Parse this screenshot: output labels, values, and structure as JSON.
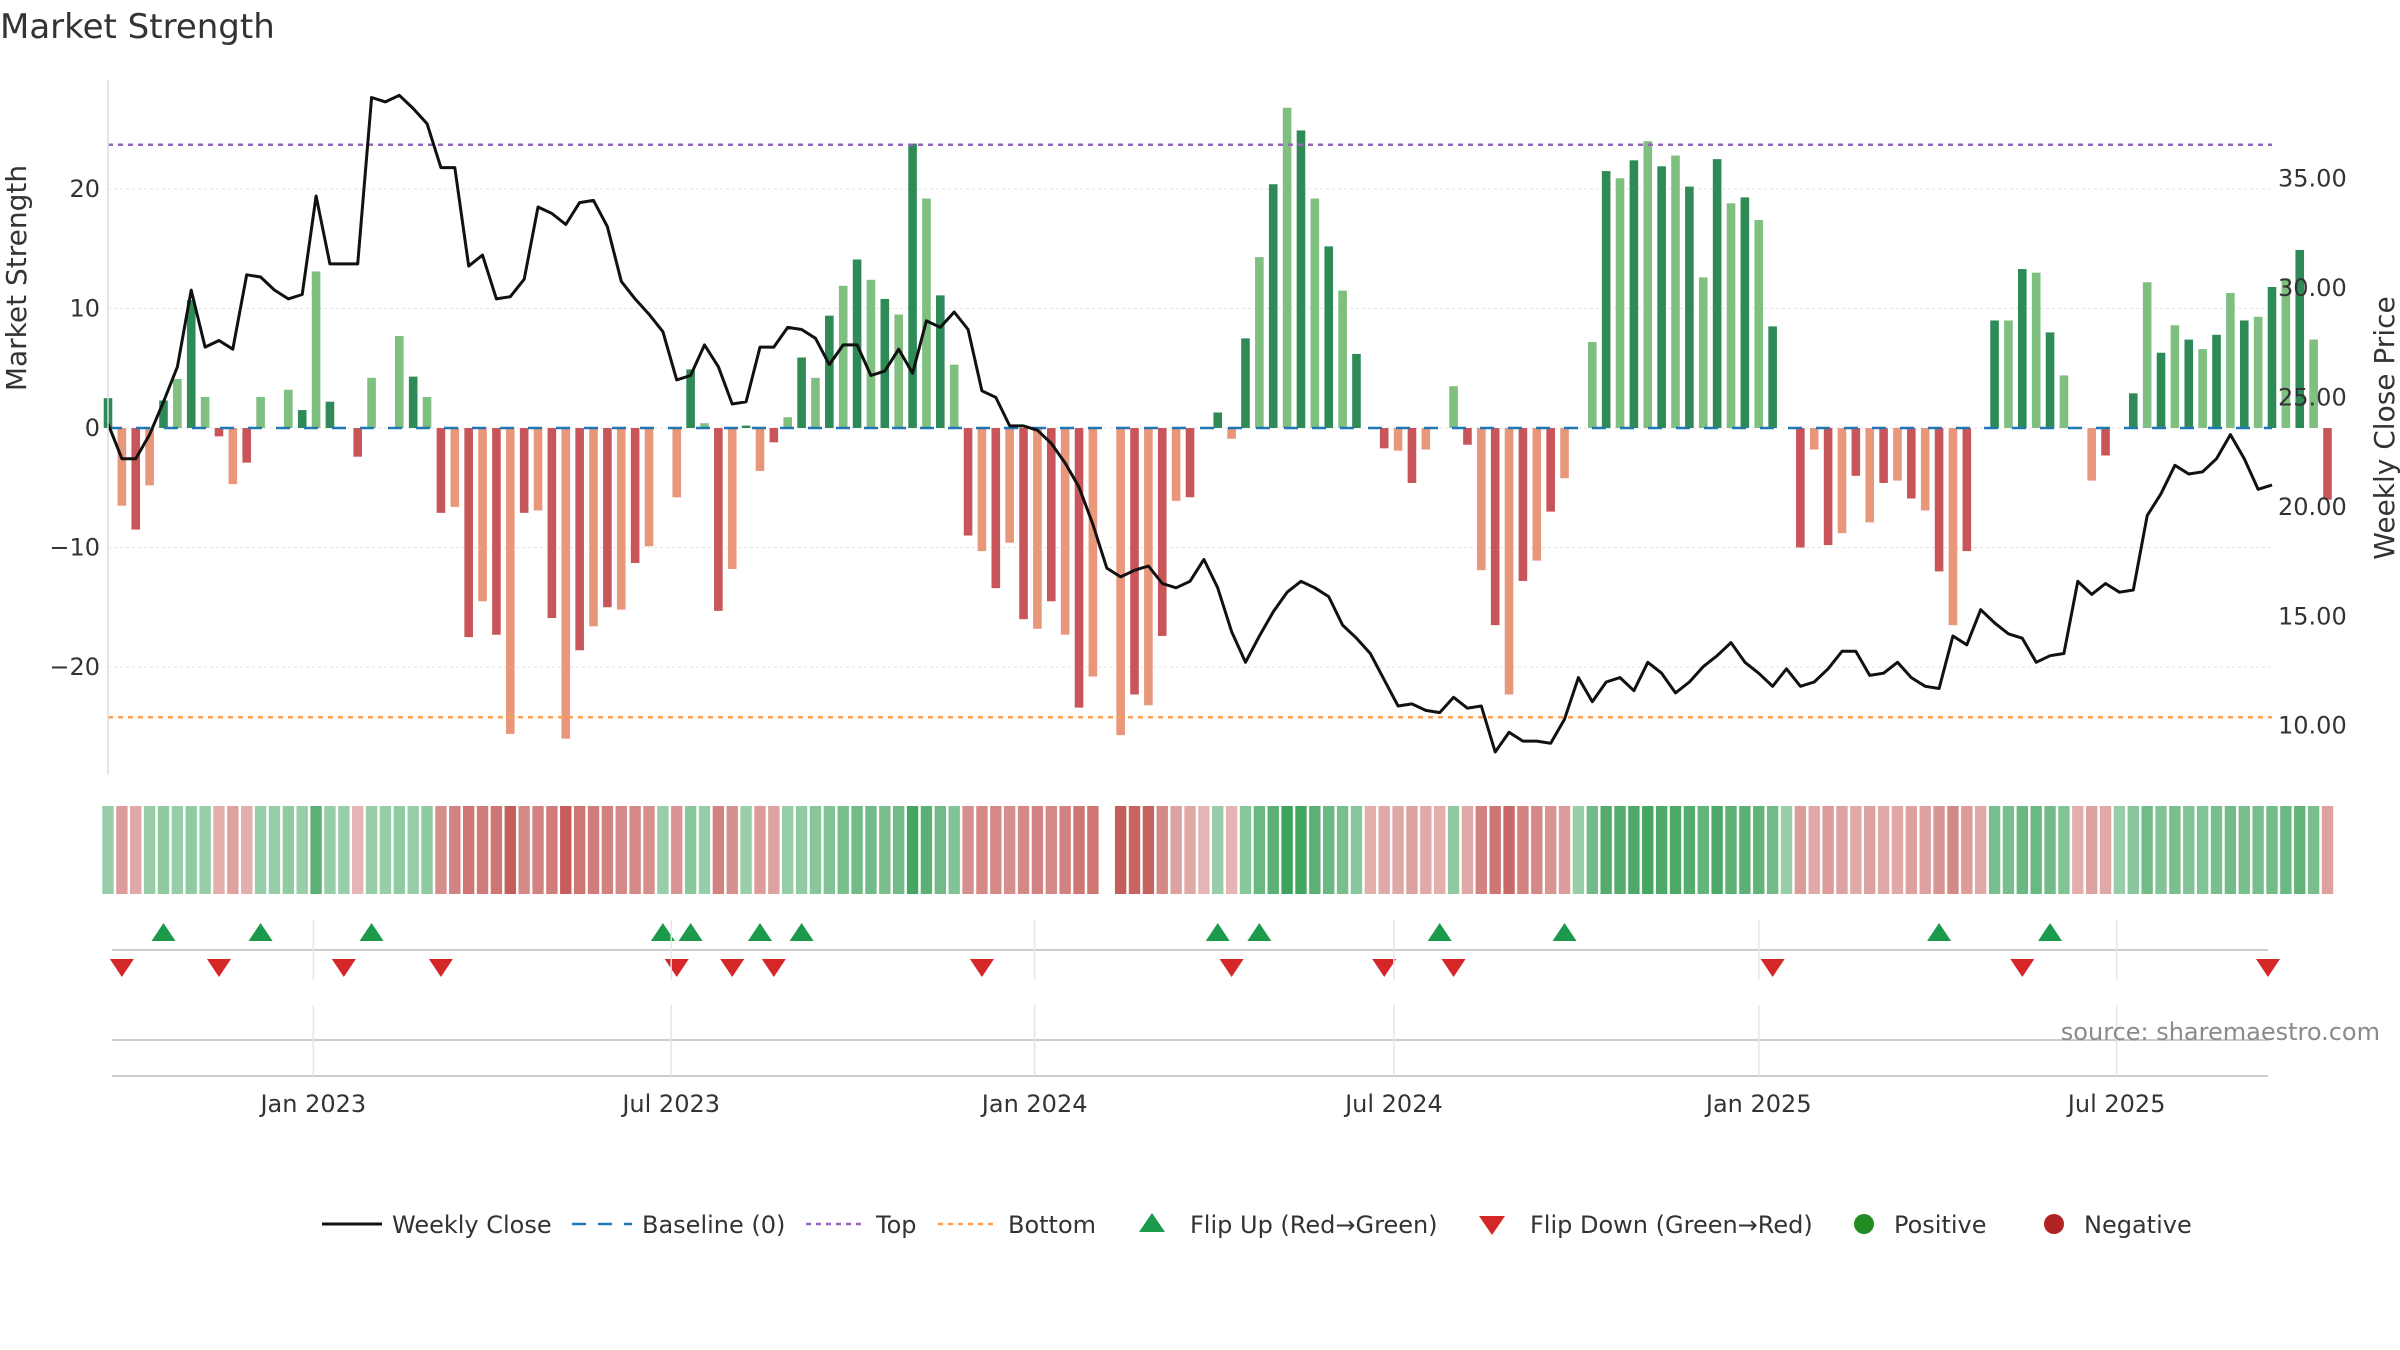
{
  "chart_data": {
    "type": "bar",
    "title": "Market Strength",
    "source": "source: sharemaestro.com",
    "ylabel_left": "Market Strength",
    "ylabel_right": "Weekly Close Price",
    "ylim_left": [
      -29,
      29
    ],
    "ylim_right": [
      7.75,
      39.5
    ],
    "yticks_left": [
      -20,
      -10,
      0,
      10,
      20
    ],
    "ytick_labels_left": [
      "−20",
      "−10",
      "0",
      "10",
      "20"
    ],
    "yticks_right": [
      10,
      15,
      20,
      25,
      30,
      35
    ],
    "ytick_labels_right": [
      "10.00",
      "15.00",
      "20.00",
      "25.00",
      "30.00",
      "35.00"
    ],
    "top_line": 23.7,
    "bottom_line": -24.2,
    "baseline": 0,
    "x_range": [
      0,
      156
    ],
    "xticks": [
      {
        "label": "Jan 2023",
        "x": 14.8
      },
      {
        "label": "Jul 2023",
        "x": 40.6
      },
      {
        "label": "Jan 2024",
        "x": 66.8
      },
      {
        "label": "Jul 2024",
        "x": 92.7
      },
      {
        "label": "Jan 2025",
        "x": 119.0
      },
      {
        "label": "Jul 2025",
        "x": 144.8
      }
    ],
    "strength": [
      2.5,
      -6.5,
      -8.5,
      -4.8,
      2.3,
      4.1,
      10.7,
      2.6,
      -0.7,
      -4.7,
      -2.9,
      2.6,
      0,
      3.2,
      1.5,
      13.1,
      2.2,
      0,
      -2.4,
      4.2,
      0,
      7.7,
      4.3,
      2.6,
      -7.1,
      -6.6,
      -17.5,
      -14.5,
      -17.3,
      -25.6,
      -7.1,
      -6.9,
      -15.9,
      -26.0,
      -18.6,
      -16.6,
      -15.0,
      -15.2,
      -11.3,
      -9.9,
      0,
      -5.8,
      4.9,
      0.4,
      -15.3,
      -11.8,
      0.2,
      -3.6,
      -1.2,
      0.9,
      5.9,
      4.2,
      9.4,
      11.9,
      14.1,
      12.4,
      10.8,
      9.5,
      23.8,
      19.2,
      11.1,
      5.3,
      -9.0,
      -10.3,
      -13.4,
      -9.6,
      -16.0,
      -16.8,
      -14.5,
      -17.3,
      -23.4,
      -20.8,
      0,
      -25.7,
      -22.3,
      -23.2,
      -17.4,
      -6.1,
      -5.8,
      0,
      1.3,
      -0.9,
      7.5,
      14.3,
      20.4,
      26.8,
      24.9,
      19.2,
      15.2,
      11.5,
      6.2,
      0,
      -1.7,
      -1.9,
      -4.6,
      -1.8,
      0,
      3.5,
      -1.4,
      -11.9,
      -16.5,
      -22.3,
      -12.8,
      -11.1,
      -7.0,
      -4.2,
      0,
      7.2,
      21.5,
      20.9,
      22.4,
      24.0,
      21.9,
      22.8,
      20.2,
      12.6,
      22.5,
      18.8,
      19.3,
      17.4,
      8.5,
      0,
      -10.0,
      -1.8,
      -9.8,
      -8.8,
      -4.0,
      -7.9,
      -4.6,
      -4.4,
      -5.9,
      -6.9,
      -12.0,
      -16.5,
      -10.3,
      0,
      9.0,
      9.0,
      13.3,
      13.0,
      8.0,
      4.4,
      0,
      -4.4,
      -2.3,
      0,
      2.9,
      12.2,
      6.3,
      8.6,
      7.4,
      6.6,
      7.8,
      11.3,
      9.0,
      9.3,
      11.8,
      12.5,
      14.9,
      7.4,
      -6.0
    ],
    "close": [
      23.8,
      22.2,
      22.2,
      23.3,
      24.8,
      26.4,
      29.9,
      27.3,
      27.6,
      27.2,
      30.6,
      30.5,
      29.9,
      29.5,
      29.7,
      34.2,
      31.1,
      31.1,
      31.1,
      38.7,
      38.5,
      38.8,
      38.2,
      37.5,
      35.5,
      35.5,
      31.0,
      31.5,
      29.5,
      29.6,
      30.4,
      33.7,
      33.4,
      32.9,
      33.9,
      34.0,
      32.8,
      30.3,
      29.5,
      28.8,
      28.0,
      25.8,
      26.0,
      27.4,
      26.4,
      24.7,
      24.8,
      27.3,
      27.3,
      28.2,
      28.1,
      27.7,
      26.5,
      27.4,
      27.4,
      26.0,
      26.2,
      27.2,
      26.1,
      28.5,
      28.2,
      28.9,
      28.1,
      25.3,
      25.0,
      23.7,
      23.7,
      23.5,
      22.9,
      22.0,
      20.9,
      19.2,
      17.2,
      16.8,
      17.1,
      17.3,
      16.5,
      16.3,
      16.6,
      17.6,
      16.3,
      14.3,
      12.9,
      14.1,
      15.2,
      16.1,
      16.6,
      16.3,
      15.9,
      14.6,
      14.0,
      13.3,
      12.1,
      10.9,
      11.0,
      10.7,
      10.6,
      11.3,
      10.8,
      10.9,
      8.8,
      9.7,
      9.3,
      9.3,
      9.2,
      10.3,
      12.2,
      11.1,
      12.0,
      12.2,
      11.6,
      12.9,
      12.4,
      11.5,
      12.0,
      12.7,
      13.2,
      13.8,
      12.9,
      12.4,
      11.8,
      12.6,
      11.8,
      12.0,
      12.6,
      13.4,
      13.4,
      12.3,
      12.4,
      12.9,
      12.2,
      11.8,
      11.7,
      14.1,
      13.7,
      15.3,
      14.7,
      14.2,
      14.0,
      12.9,
      13.2,
      13.3,
      16.6,
      16.0,
      16.5,
      16.1,
      16.2,
      19.6,
      20.6,
      21.9,
      21.5,
      21.6,
      22.2,
      23.3,
      22.2,
      20.8,
      21.0
    ],
    "intensity": [
      0.3,
      -0.4,
      -0.3,
      0.3,
      0.35,
      0.3,
      0.35,
      0.3,
      -0.25,
      -0.35,
      -0.25,
      0.3,
      0.3,
      0.35,
      0.3,
      0.7,
      0.3,
      0.3,
      -0.2,
      0.3,
      0.3,
      0.35,
      0.3,
      0.35,
      -0.5,
      -0.6,
      -0.7,
      -0.65,
      -0.7,
      -0.9,
      -0.55,
      -0.6,
      -0.65,
      -0.9,
      -0.7,
      -0.65,
      -0.6,
      -0.55,
      -0.55,
      -0.5,
      0.3,
      -0.45,
      0.4,
      0.3,
      -0.6,
      -0.5,
      0.3,
      -0.4,
      -0.35,
      0.3,
      0.35,
      0.4,
      0.45,
      0.5,
      0.55,
      0.55,
      0.5,
      0.55,
      0.85,
      0.7,
      0.55,
      0.45,
      -0.5,
      -0.55,
      -0.55,
      -0.5,
      -0.55,
      -0.6,
      -0.55,
      -0.6,
      -0.7,
      -0.7,
      0,
      -0.9,
      -0.85,
      -0.85,
      -0.55,
      -0.35,
      -0.3,
      -0.2,
      0.3,
      -0.2,
      0.4,
      0.6,
      0.7,
      0.9,
      0.85,
      0.7,
      0.6,
      0.5,
      0.4,
      -0.25,
      -0.3,
      -0.3,
      -0.35,
      -0.3,
      -0.25,
      0.35,
      -0.3,
      -0.6,
      -0.7,
      -0.8,
      -0.6,
      -0.55,
      -0.45,
      -0.4,
      0.3,
      0.55,
      0.75,
      0.75,
      0.8,
      0.85,
      0.8,
      0.8,
      0.75,
      0.65,
      0.8,
      0.7,
      0.7,
      0.65,
      0.55,
      0.3,
      -0.4,
      -0.3,
      -0.4,
      -0.35,
      -0.3,
      -0.35,
      -0.3,
      -0.3,
      -0.35,
      -0.35,
      -0.45,
      -0.55,
      -0.4,
      -0.3,
      0.5,
      0.5,
      0.6,
      0.6,
      0.55,
      0.45,
      -0.25,
      -0.35,
      -0.3,
      0.3,
      0.4,
      0.55,
      0.45,
      0.5,
      0.45,
      0.45,
      0.5,
      0.55,
      0.5,
      0.5,
      0.55,
      0.6,
      0.65,
      0.5,
      -0.35
    ],
    "flip_up_x": [
      4,
      11,
      19,
      40,
      42,
      47,
      50,
      80,
      83,
      96,
      105,
      132,
      140
    ],
    "flip_down_x": [
      1,
      8,
      17,
      24,
      41,
      45,
      48,
      63,
      81,
      92,
      97,
      120,
      138,
      156
    ],
    "legend": [
      {
        "label": "Weekly Close",
        "kind": "solid-line",
        "color": "#111111"
      },
      {
        "label": "Baseline (0)",
        "kind": "dash-line",
        "color": "#1f77b4"
      },
      {
        "label": "Top",
        "kind": "dot-line",
        "color": "#9467bd"
      },
      {
        "label": "Bottom",
        "kind": "dot-line",
        "color": "#ff9f50"
      },
      {
        "label": "Flip Up (Red→Green)",
        "kind": "triangle-up",
        "color": "#1a9a4a"
      },
      {
        "label": "Flip Down (Green→Red)",
        "kind": "triangle-down",
        "color": "#d62728"
      },
      {
        "label": "Positive",
        "kind": "dot",
        "color": "#228b22"
      },
      {
        "label": "Negative",
        "kind": "dot",
        "color": "#b22222"
      }
    ],
    "colors": {
      "pos_dark": "#2e8b57",
      "pos_light": "#7fbf7f",
      "neg_dark": "#c8555a",
      "neg_light": "#e9977a",
      "close_line": "#111111",
      "baseline": "#1f77b4",
      "top": "#9467bd",
      "bottom": "#ff9f50",
      "flip_up": "#1a9a4a",
      "flip_down": "#d62728"
    }
  }
}
